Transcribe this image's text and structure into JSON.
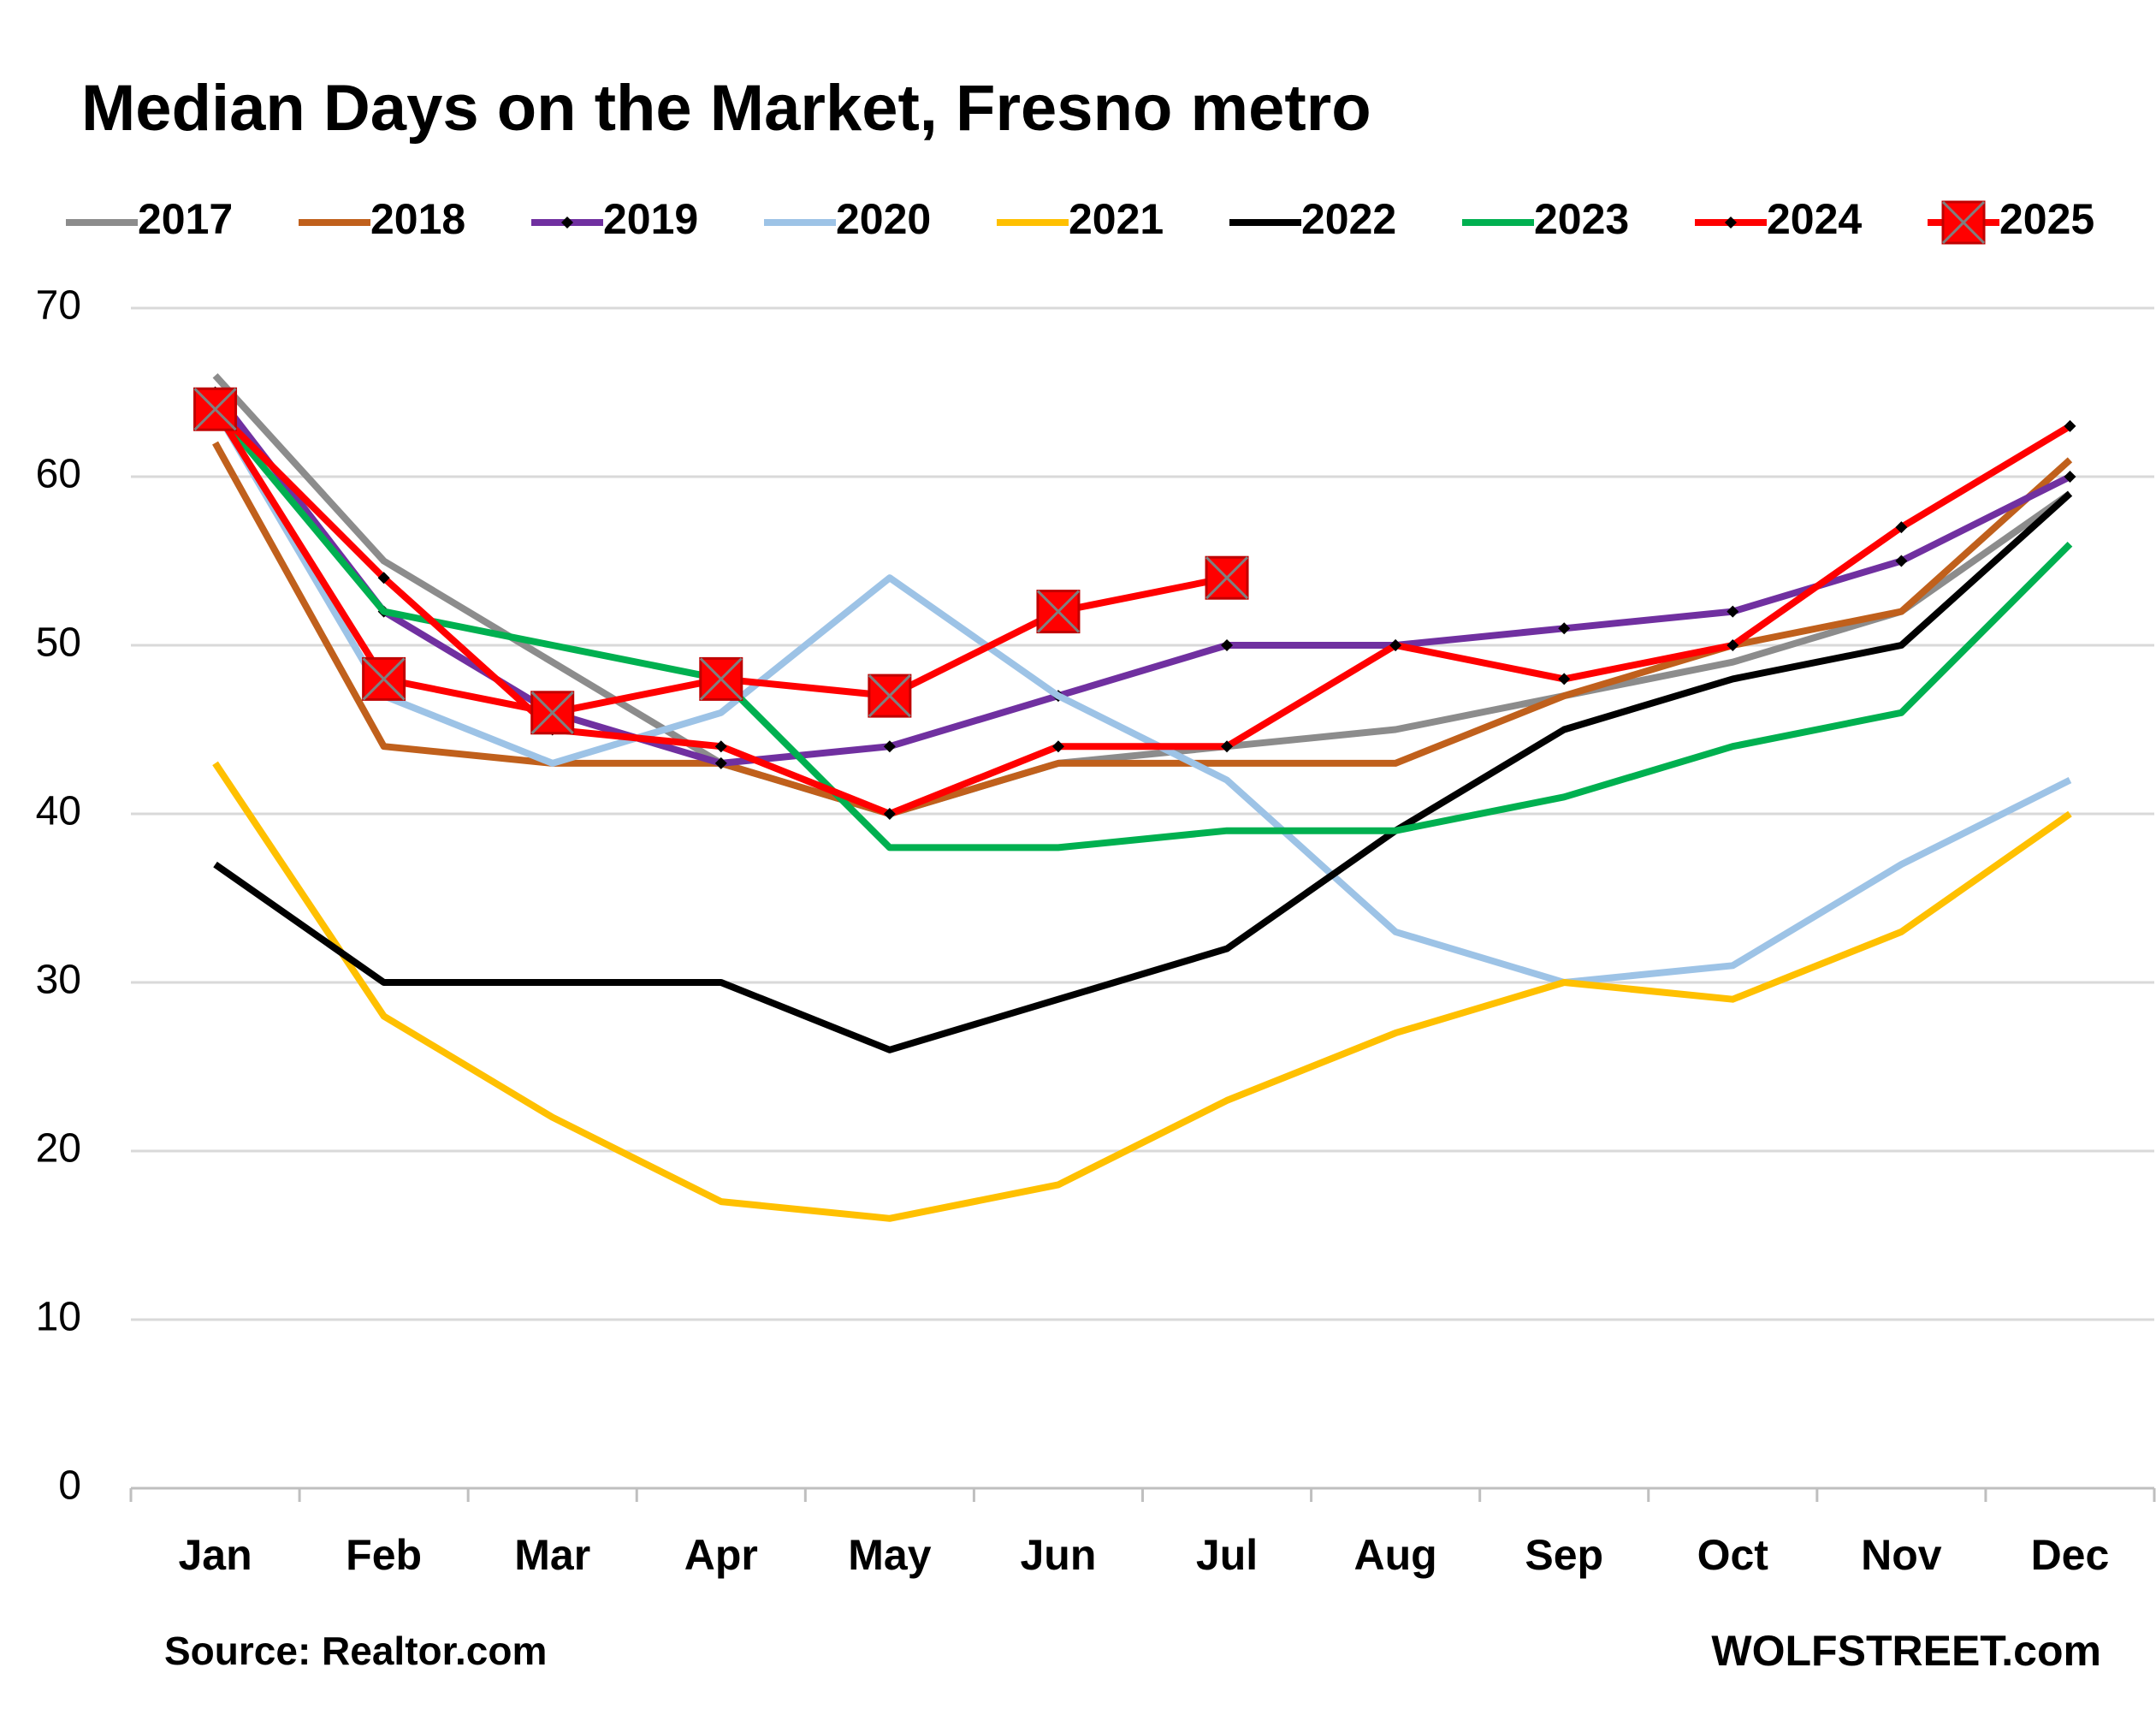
{
  "chart_data": {
    "type": "line",
    "title": "Median Days on the Market, Fresno metro",
    "source": "Source: Realtor.com",
    "credit": "WOLFSTREET.com",
    "categories": [
      "Jan",
      "Feb",
      "Mar",
      "Apr",
      "May",
      "Jun",
      "Jul",
      "Aug",
      "Sep",
      "Oct",
      "Nov",
      "Dec"
    ],
    "ylim": [
      0,
      70
    ],
    "yticks": [
      0,
      10,
      20,
      30,
      40,
      50,
      60,
      70
    ],
    "grid": true,
    "legend": "top",
    "series": [
      {
        "name": "2017",
        "color": "#8c8c8c",
        "values": [
          66,
          55,
          49,
          43,
          40,
          43,
          44,
          45,
          47,
          49,
          52,
          59
        ]
      },
      {
        "name": "2018",
        "color": "#c0601c",
        "values": [
          62,
          44,
          43,
          43,
          40,
          43,
          43,
          43,
          47,
          50,
          52,
          61
        ]
      },
      {
        "name": "2019",
        "color": "#7030a0",
        "marker": "diamond",
        "marker_color": "#000000",
        "values": [
          65,
          52,
          46,
          43,
          44,
          47,
          50,
          50,
          51,
          52,
          55,
          60
        ]
      },
      {
        "name": "2020",
        "color": "#9dc3e6",
        "values": [
          64,
          47,
          43,
          46,
          54,
          47,
          42,
          33,
          30,
          31,
          37,
          42
        ]
      },
      {
        "name": "2021",
        "color": "#ffc000",
        "values": [
          43,
          28,
          22,
          17,
          16,
          18,
          23,
          27,
          30,
          29,
          33,
          40
        ]
      },
      {
        "name": "2022",
        "color": "#000000",
        "values": [
          37,
          30,
          30,
          30,
          26,
          29,
          32,
          39,
          45,
          48,
          50,
          59
        ]
      },
      {
        "name": "2023",
        "color": "#00b050",
        "values": [
          64,
          52,
          50,
          48,
          38,
          38,
          39,
          39,
          41,
          44,
          46,
          56
        ]
      },
      {
        "name": "2024",
        "color": "#ff0000",
        "marker": "diamond",
        "marker_color": "#000000",
        "values": [
          64,
          54,
          45,
          44,
          40,
          44,
          44,
          50,
          48,
          50,
          57,
          63
        ]
      },
      {
        "name": "2025",
        "color": "#ff0000",
        "marker": "square",
        "marker_color": "#7f7f7f",
        "values": [
          64,
          48,
          46,
          48,
          47,
          52,
          54,
          null,
          null,
          null,
          null,
          null
        ]
      }
    ]
  }
}
